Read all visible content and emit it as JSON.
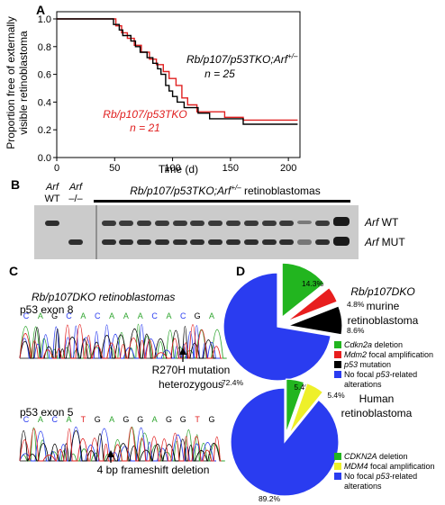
{
  "figure": {
    "panelA": {
      "label": "A",
      "chart_data": {
        "type": "line",
        "xlabel": "Time (d)",
        "ylabel_line1": "Proportion free of externally",
        "ylabel_line2": "visible retinoblastoma",
        "xlim": [
          0,
          210
        ],
        "ylim": [
          0,
          1.0
        ],
        "x_ticks": [
          0,
          50,
          100,
          150,
          200
        ],
        "x_tick_labels": [
          "0",
          "50",
          "100",
          "150",
          "200"
        ],
        "y_ticks": [
          0,
          0.2,
          0.4,
          0.6,
          0.8,
          1.0
        ],
        "y_tick_labels": [
          "0.0",
          "0.2",
          "0.4",
          "0.6",
          "0.8",
          "1.0"
        ],
        "series": [
          {
            "name": "Rb/p107/p53TKO;Arf+/–",
            "name_main": "Rb/p107/p53TKO;Arf",
            "name_sup": "+/–",
            "n_label": "n = 25",
            "color": "#000000",
            "points": [
              [
                0,
                1.0
              ],
              [
                49,
                1.0
              ],
              [
                49,
                0.96
              ],
              [
                54,
                0.96
              ],
              [
                54,
                0.92
              ],
              [
                57,
                0.92
              ],
              [
                57,
                0.88
              ],
              [
                64,
                0.88
              ],
              [
                64,
                0.84
              ],
              [
                68,
                0.84
              ],
              [
                68,
                0.8
              ],
              [
                72,
                0.8
              ],
              [
                72,
                0.76
              ],
              [
                78,
                0.76
              ],
              [
                78,
                0.72
              ],
              [
                83,
                0.72
              ],
              [
                83,
                0.68
              ],
              [
                87,
                0.68
              ],
              [
                87,
                0.64
              ],
              [
                90,
                0.64
              ],
              [
                90,
                0.6
              ],
              [
                94,
                0.6
              ],
              [
                94,
                0.52
              ],
              [
                97,
                0.52
              ],
              [
                97,
                0.48
              ],
              [
                100,
                0.48
              ],
              [
                100,
                0.44
              ],
              [
                104,
                0.44
              ],
              [
                104,
                0.4
              ],
              [
                110,
                0.4
              ],
              [
                110,
                0.36
              ],
              [
                122,
                0.36
              ],
              [
                122,
                0.32
              ],
              [
                132,
                0.32
              ],
              [
                132,
                0.28
              ],
              [
                161,
                0.28
              ],
              [
                161,
                0.24
              ],
              [
                208,
                0.24
              ]
            ]
          },
          {
            "name": "Rb/p107/p53TKO",
            "name_main": "Rb/p107/p53TKO",
            "n_label": "n = 21",
            "color": "#e02020",
            "points": [
              [
                0,
                1.0
              ],
              [
                51,
                1.0
              ],
              [
                51,
                0.95
              ],
              [
                56,
                0.95
              ],
              [
                56,
                0.9
              ],
              [
                61,
                0.9
              ],
              [
                61,
                0.86
              ],
              [
                67,
                0.86
              ],
              [
                67,
                0.81
              ],
              [
                73,
                0.81
              ],
              [
                73,
                0.76
              ],
              [
                80,
                0.76
              ],
              [
                80,
                0.71
              ],
              [
                86,
                0.71
              ],
              [
                86,
                0.67
              ],
              [
                92,
                0.67
              ],
              [
                92,
                0.62
              ],
              [
                97,
                0.62
              ],
              [
                97,
                0.57
              ],
              [
                103,
                0.57
              ],
              [
                103,
                0.52
              ],
              [
                108,
                0.52
              ],
              [
                108,
                0.43
              ],
              [
                113,
                0.43
              ],
              [
                113,
                0.38
              ],
              [
                121,
                0.38
              ],
              [
                121,
                0.33
              ],
              [
                145,
                0.33
              ],
              [
                145,
                0.29
              ],
              [
                161,
                0.29
              ],
              [
                161,
                0.27
              ],
              [
                208,
                0.27
              ]
            ]
          }
        ]
      }
    },
    "panelB": {
      "label": "B",
      "lane_label_1_main": "Arf",
      "lane_label_1_sub": "WT",
      "lane_label_2_main": "Arf",
      "lane_label_2_sub": "–/–",
      "group_label_main": "Rb/p107/p53TKO;Arf",
      "group_label_sup": "+/–",
      "group_label_rest": " retinoblastomas",
      "band_label_wt_main": "Arf",
      "band_label_wt_rest": " WT",
      "band_label_mut_main": "Arf",
      "band_label_mut_rest": " MUT"
    },
    "panelC": {
      "label": "C",
      "title": "Rb/p107DKO retinoblastomas",
      "exon8_label": "p53 exon 8",
      "exon8_bases": [
        "C",
        "A",
        "G",
        "C",
        "A",
        "C",
        "A",
        "A",
        "A",
        "C",
        "A",
        "C",
        "G",
        "A"
      ],
      "exon8_annotation_line1": "R270H mutation",
      "exon8_annotation_line2": "heterozygous",
      "exon5_label": "p53 exon 5",
      "exon5_bases": [
        "C",
        "A",
        "C",
        "A",
        "T",
        "G",
        "A",
        "G",
        "G",
        "A",
        "G",
        "G",
        "T",
        "G"
      ],
      "exon5_annotation": "4 bp frameshift deletion"
    },
    "panelD": {
      "label": "D",
      "pie1": {
        "title_line1": "Rb/p107DKO",
        "title_line2": "murine",
        "title_line3": "retinoblastoma",
        "chart_data": {
          "type": "pie",
          "slices": [
            {
              "label": "Cdkn2a deletion",
              "value": 14.3,
              "value_label": "14.3%",
              "color": "#22b51f"
            },
            {
              "label": "Mdm2 focal amplification",
              "value": 4.8,
              "value_label": "4.8%",
              "color": "#e81e1e"
            },
            {
              "label": "p53 mutation",
              "value": 8.6,
              "value_label": "8.6%",
              "color": "#000000"
            },
            {
              "label": "No focal p53-related alterations",
              "value": 72.4,
              "value_label": "72.4%",
              "color": "#2a3cf0"
            }
          ]
        },
        "legend": [
          {
            "main": "Cdkn2a",
            "rest": " deletion",
            "italic_main": true
          },
          {
            "main": "Mdm2",
            "rest": " focal amplification",
            "italic_main": true
          },
          {
            "main": "p53",
            "rest": " mutation",
            "italic_main": true
          },
          {
            "pre": "No focal ",
            "main": "p53",
            "rest": "-related",
            "line2": "alterations",
            "italic_main": true
          }
        ]
      },
      "pie2": {
        "title_line1": "Human",
        "title_line2": "retinoblastoma",
        "chart_data": {
          "type": "pie",
          "slices": [
            {
              "label": "CDKN2A deletion",
              "value": 5.4,
              "value_label": "5.4%",
              "color": "#22b51f"
            },
            {
              "label": "MDM4 focal amplification",
              "value": 5.4,
              "value_label": "5.4%",
              "color": "#eef02a"
            },
            {
              "label": "No focal p53-related alterations",
              "value": 89.2,
              "value_label": "89.2%",
              "color": "#2a3cf0"
            }
          ]
        },
        "legend": [
          {
            "main": "CDKN2A",
            "rest": " deletion",
            "italic_main": true
          },
          {
            "main": "MDM4",
            "rest": " focal amplification",
            "italic_main": true
          },
          {
            "pre": "No focal ",
            "main": "p53",
            "rest": "-related",
            "line2": "alterations",
            "italic_main": true
          }
        ]
      }
    }
  }
}
